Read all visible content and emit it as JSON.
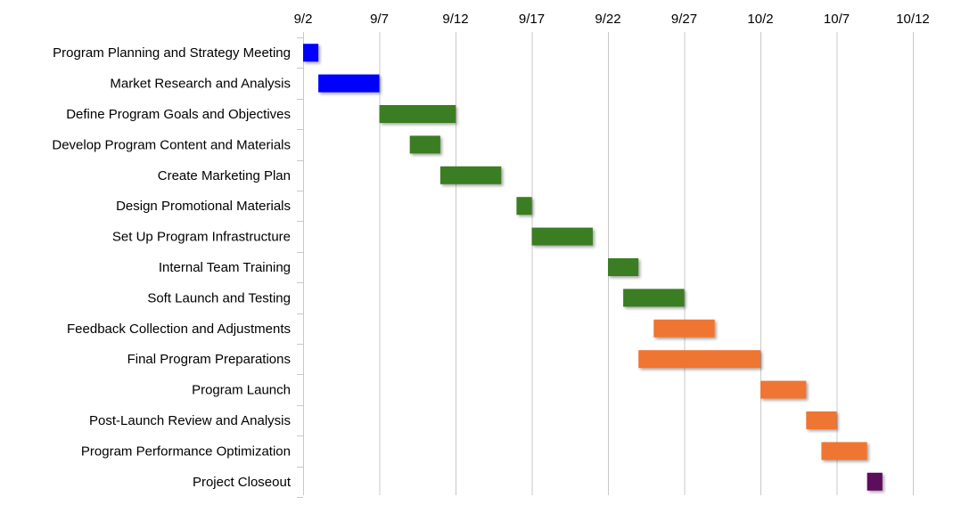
{
  "chart_data": {
    "type": "gantt",
    "x_axis": {
      "ticks": [
        "9/2",
        "9/7",
        "9/12",
        "9/17",
        "9/22",
        "9/27",
        "10/2",
        "10/7",
        "10/12"
      ],
      "tick_days": [
        0,
        5,
        10,
        15,
        20,
        25,
        30,
        35,
        40
      ],
      "range_days": [
        0,
        40
      ],
      "position": "top",
      "grid": true
    },
    "colors": {
      "blue": "#0000ff",
      "green": "#3a7d24",
      "orange": "#ef7430",
      "purple": "#5c0a5c"
    },
    "tasks": [
      {
        "name": "Program Planning and Strategy Meeting",
        "start": 0,
        "end": 1,
        "color": "blue"
      },
      {
        "name": "Market Research and Analysis",
        "start": 1,
        "end": 5,
        "color": "blue"
      },
      {
        "name": "Define Program Goals and Objectives",
        "start": 5,
        "end": 10,
        "color": "green"
      },
      {
        "name": "Develop Program Content and Materials",
        "start": 7,
        "end": 9,
        "color": "green"
      },
      {
        "name": "Create Marketing Plan",
        "start": 9,
        "end": 13,
        "color": "green"
      },
      {
        "name": "Design Promotional Materials",
        "start": 14,
        "end": 15,
        "color": "green"
      },
      {
        "name": "Set Up Program Infrastructure",
        "start": 15,
        "end": 19,
        "color": "green"
      },
      {
        "name": "Internal Team Training",
        "start": 20,
        "end": 22,
        "color": "green"
      },
      {
        "name": "Soft Launch and Testing",
        "start": 21,
        "end": 25,
        "color": "green"
      },
      {
        "name": "Feedback Collection and Adjustments",
        "start": 23,
        "end": 27,
        "color": "orange"
      },
      {
        "name": "Final Program Preparations",
        "start": 22,
        "end": 30,
        "color": "orange"
      },
      {
        "name": "Program Launch",
        "start": 30,
        "end": 33,
        "color": "orange"
      },
      {
        "name": "Post-Launch Review and Analysis",
        "start": 33,
        "end": 35,
        "color": "orange"
      },
      {
        "name": "Program Performance Optimization",
        "start": 34,
        "end": 37,
        "color": "orange"
      },
      {
        "name": "Project Closeout",
        "start": 37,
        "end": 38,
        "color": "purple"
      }
    ]
  }
}
